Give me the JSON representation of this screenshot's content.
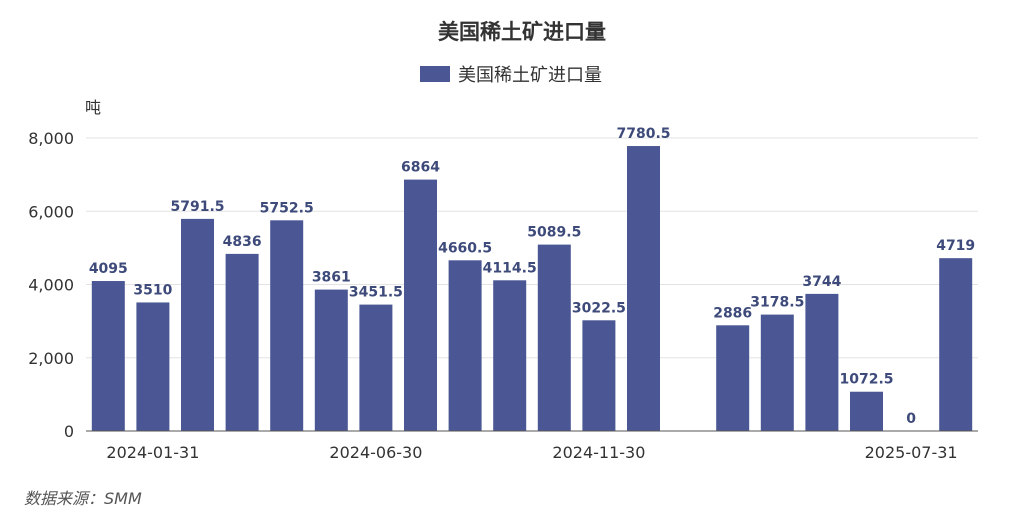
{
  "chart_data": {
    "type": "bar",
    "title": "美国稀土矿进口量",
    "unit_label": "吨",
    "legend_position": "top-center",
    "series": [
      {
        "name": "美国稀土矿进口量",
        "color": "#4a5794",
        "values": [
          4095,
          3510,
          5791.5,
          4836,
          5752.5,
          3861,
          3451.5,
          6864,
          4660.5,
          4114.5,
          5089.5,
          3022.5,
          7780.5,
          null,
          2886,
          3178.5,
          3744,
          1072.5,
          0,
          4719
        ]
      }
    ],
    "data_labels": [
      "4095",
      "3510",
      "5791.5",
      "4836",
      "5752.5",
      "3861",
      "3451.5",
      "6864",
      "4660.5",
      "4114.5",
      "5089.5",
      "3022.5",
      "7780.5",
      "",
      "2886",
      "3178.5",
      "3744",
      "1072.5",
      "0",
      "4719"
    ],
    "x_tick_labels": [
      {
        "index": 1,
        "label": "2024-01-31"
      },
      {
        "index": 6,
        "label": "2024-06-30"
      },
      {
        "index": 11,
        "label": "2024-11-30"
      },
      {
        "index": 18,
        "label": "2025-07-31"
      }
    ],
    "y_ticks": [
      "0",
      "2,000",
      "4,000",
      "6,000",
      "8,000"
    ],
    "ylim": [
      0,
      8000
    ],
    "grid": true
  },
  "source_text": "数据来源：SMM"
}
